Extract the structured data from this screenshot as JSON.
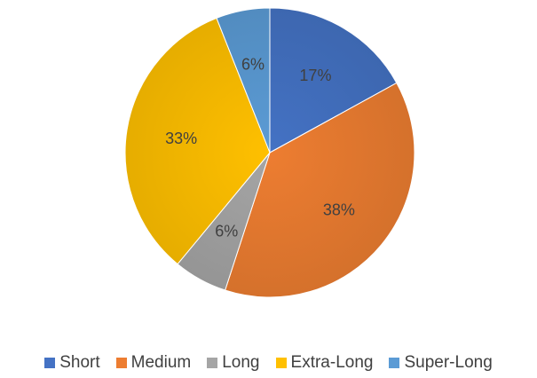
{
  "chart_data": {
    "type": "pie",
    "categories": [
      "Short",
      "Medium",
      "Long",
      "Extra-Long",
      "Super-Long"
    ],
    "values": [
      17,
      38,
      6,
      33,
      6
    ],
    "labels": [
      "17%",
      "38%",
      "6%",
      "33%",
      "6%"
    ],
    "colors": [
      "#4472C4",
      "#ED7D31",
      "#A5A5A5",
      "#FFC000",
      "#5B9BD5"
    ],
    "start_angle": "top",
    "direction": "clockwise",
    "legend_position": "bottom",
    "title": ""
  }
}
